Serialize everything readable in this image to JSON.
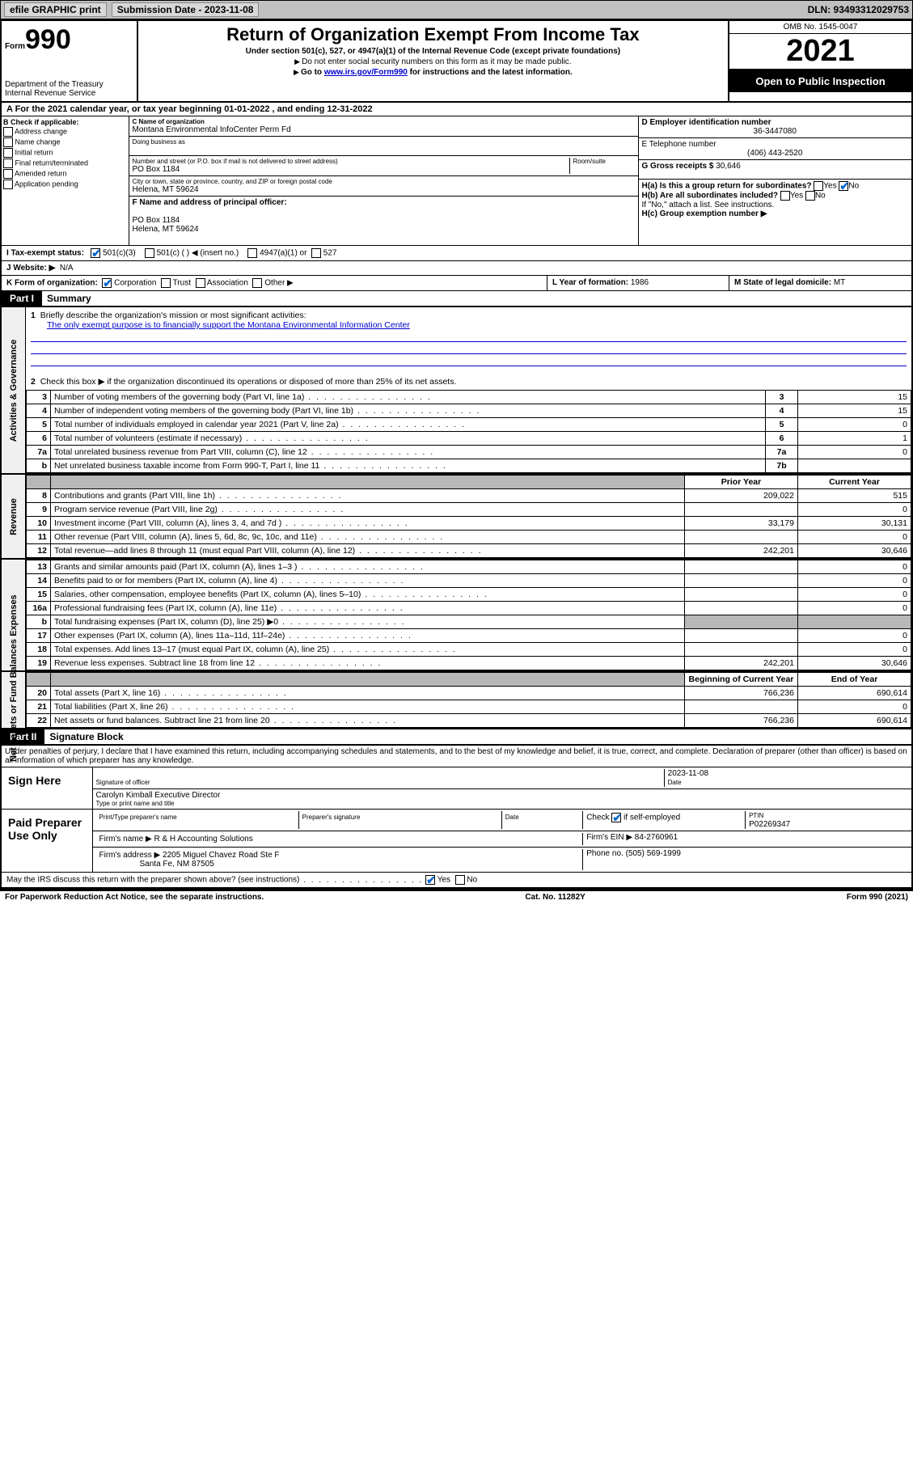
{
  "toolbar": {
    "efile_label": "efile GRAPHIC print",
    "submission_label": "Submission Date - 2023-11-08",
    "dln_label": "DLN: 93493312029753"
  },
  "header": {
    "form_prefix": "Form",
    "form_number": "990",
    "dept": "Department of the Treasury",
    "irs": "Internal Revenue Service",
    "title": "Return of Organization Exempt From Income Tax",
    "subtitle": "Under section 501(c), 527, or 4947(a)(1) of the Internal Revenue Code (except private foundations)",
    "ssn_warn": "Do not enter social security numbers on this form as it may be made public.",
    "goto_prefix": "Go to ",
    "goto_link": "www.irs.gov/Form990",
    "goto_suffix": " for instructions and the latest information.",
    "omb": "OMB No. 1545-0047",
    "year": "2021",
    "open_pub": "Open to Public Inspection"
  },
  "row_a": "A For the 2021 calendar year, or tax year beginning 01-01-2022   , and ending 12-31-2022",
  "section_b": {
    "label": "B Check if applicable:",
    "opts": [
      "Address change",
      "Name change",
      "Initial return",
      "Final return/terminated",
      "Amended return",
      "Application pending"
    ]
  },
  "section_c": {
    "name_label": "C Name of organization",
    "name": "Montana Environmental InfoCenter Perm Fd",
    "dba_label": "Doing business as",
    "addr_label": "Number and street (or P.O. box if mail is not delivered to street address)",
    "room_label": "Room/suite",
    "addr": "PO Box 1184",
    "city_label": "City or town, state or province, country, and ZIP or foreign postal code",
    "city": "Helena, MT  59624"
  },
  "section_d": {
    "label": "D Employer identification number",
    "value": "36-3447080"
  },
  "section_e": {
    "label": "E Telephone number",
    "value": "(406) 443-2520"
  },
  "section_g": {
    "label": "G Gross receipts $",
    "value": "30,646"
  },
  "section_f": {
    "label": "F  Name and address of principal officer:",
    "addr1": "PO Box 1184",
    "addr2": "Helena, MT  59624"
  },
  "section_h": {
    "a_label": "H(a)  Is this a group return for subordinates?",
    "b_label": "H(b)  Are all subordinates included?",
    "yes": "Yes",
    "no": "No",
    "ifno": "If \"No,\" attach a list. See instructions.",
    "c_label": "H(c)  Group exemption number ▶"
  },
  "row_i": {
    "label": "I   Tax-exempt status:",
    "c3": "501(c)(3)",
    "c": "501(c) (   ) ◀ (insert no.)",
    "a1": "4947(a)(1) or",
    "s527": "527"
  },
  "row_j": {
    "label": "J   Website: ▶",
    "value": "N/A"
  },
  "row_k": {
    "label": "K Form of organization:",
    "corp": "Corporation",
    "trust": "Trust",
    "assoc": "Association",
    "other": "Other ▶"
  },
  "row_l": {
    "label": "L Year of formation:",
    "value": "1986"
  },
  "row_m": {
    "label": "M State of legal domicile:",
    "value": "MT"
  },
  "part1": {
    "header": "Part I",
    "title": "Summary"
  },
  "summary": {
    "sidebars": [
      "Activities & Governance",
      "Revenue",
      "Expenses",
      "Net Assets or Fund Balances"
    ],
    "q1_label": "Briefly describe the organization's mission or most significant activities:",
    "q1_text": "The only exempt purpose is to financially support the Montana Environmental Information Center",
    "q2_label": "Check this box ▶     if the organization discontinued its operations or disposed of more than 25% of its net assets.",
    "lines_top": [
      {
        "n": "3",
        "desc": "Number of voting members of the governing body (Part VI, line 1a)",
        "box": "3",
        "val": "15"
      },
      {
        "n": "4",
        "desc": "Number of independent voting members of the governing body (Part VI, line 1b)",
        "box": "4",
        "val": "15"
      },
      {
        "n": "5",
        "desc": "Total number of individuals employed in calendar year 2021 (Part V, line 2a)",
        "box": "5",
        "val": "0"
      },
      {
        "n": "6",
        "desc": "Total number of volunteers (estimate if necessary)",
        "box": "6",
        "val": "1"
      },
      {
        "n": "7a",
        "desc": "Total unrelated business revenue from Part VIII, column (C), line 12",
        "box": "7a",
        "val": "0"
      },
      {
        "n": "b",
        "desc": "Net unrelated business taxable income from Form 990-T, Part I, line 11",
        "box": "7b",
        "val": ""
      }
    ],
    "col_prior": "Prior Year",
    "col_current": "Current Year",
    "revenue": [
      {
        "n": "8",
        "desc": "Contributions and grants (Part VIII, line 1h)",
        "prior": "209,022",
        "curr": "515"
      },
      {
        "n": "9",
        "desc": "Program service revenue (Part VIII, line 2g)",
        "prior": "",
        "curr": "0"
      },
      {
        "n": "10",
        "desc": "Investment income (Part VIII, column (A), lines 3, 4, and 7d )",
        "prior": "33,179",
        "curr": "30,131"
      },
      {
        "n": "11",
        "desc": "Other revenue (Part VIII, column (A), lines 5, 6d, 8c, 9c, 10c, and 11e)",
        "prior": "",
        "curr": "0"
      },
      {
        "n": "12",
        "desc": "Total revenue—add lines 8 through 11 (must equal Part VIII, column (A), line 12)",
        "prior": "242,201",
        "curr": "30,646"
      }
    ],
    "expenses": [
      {
        "n": "13",
        "desc": "Grants and similar amounts paid (Part IX, column (A), lines 1–3 )",
        "prior": "",
        "curr": "0"
      },
      {
        "n": "14",
        "desc": "Benefits paid to or for members (Part IX, column (A), line 4)",
        "prior": "",
        "curr": "0"
      },
      {
        "n": "15",
        "desc": "Salaries, other compensation, employee benefits (Part IX, column (A), lines 5–10)",
        "prior": "",
        "curr": "0"
      },
      {
        "n": "16a",
        "desc": "Professional fundraising fees (Part IX, column (A), line 11e)",
        "prior": "",
        "curr": "0"
      },
      {
        "n": "b",
        "desc": "Total fundraising expenses (Part IX, column (D), line 25) ▶0",
        "prior": "SHADE",
        "curr": "SHADE"
      },
      {
        "n": "17",
        "desc": "Other expenses (Part IX, column (A), lines 11a–11d, 11f–24e)",
        "prior": "",
        "curr": "0"
      },
      {
        "n": "18",
        "desc": "Total expenses. Add lines 13–17 (must equal Part IX, column (A), line 25)",
        "prior": "",
        "curr": "0"
      },
      {
        "n": "19",
        "desc": "Revenue less expenses. Subtract line 18 from line 12",
        "prior": "242,201",
        "curr": "30,646"
      }
    ],
    "col_begin": "Beginning of Current Year",
    "col_end": "End of Year",
    "netassets": [
      {
        "n": "20",
        "desc": "Total assets (Part X, line 16)",
        "prior": "766,236",
        "curr": "690,614"
      },
      {
        "n": "21",
        "desc": "Total liabilities (Part X, line 26)",
        "prior": "",
        "curr": "0"
      },
      {
        "n": "22",
        "desc": "Net assets or fund balances. Subtract line 21 from line 20",
        "prior": "766,236",
        "curr": "690,614"
      }
    ]
  },
  "part2": {
    "header": "Part II",
    "title": "Signature Block"
  },
  "sig": {
    "perjury": "Under penalties of perjury, I declare that I have examined this return, including accompanying schedules and statements, and to the best of my knowledge and belief, it is true, correct, and complete. Declaration of preparer (other than officer) is based on all information of which preparer has any knowledge.",
    "sign_here": "Sign Here",
    "sig_officer": "Signature of officer",
    "date_label": "Date",
    "date": "2023-11-08",
    "name_title": "Carolyn Kimball  Executive Director",
    "name_label": "Type or print name and title",
    "paid_prep": "Paid Preparer Use Only",
    "prep_name_label": "Print/Type preparer's name",
    "prep_sig_label": "Preparer's signature",
    "check_if": "Check",
    "self_emp": "if self-employed",
    "ptin_label": "PTIN",
    "ptin": "P02269347",
    "firm_name_label": "Firm's name    ▶",
    "firm_name": "R & H Accounting Solutions",
    "firm_ein_label": "Firm's EIN ▶",
    "firm_ein": "84-2760961",
    "firm_addr_label": "Firm's address ▶",
    "firm_addr1": "2205 Miguel Chavez Road Ste F",
    "firm_addr2": "Santa Fe, NM  87505",
    "phone_label": "Phone no.",
    "phone": "(505) 569-1999",
    "discuss": "May the IRS discuss this return with the preparer shown above? (see instructions)",
    "yes": "Yes",
    "no": "No"
  },
  "footer": {
    "pra": "For Paperwork Reduction Act Notice, see the separate instructions.",
    "cat": "Cat. No. 11282Y",
    "formver": "Form 990 (2021)"
  }
}
